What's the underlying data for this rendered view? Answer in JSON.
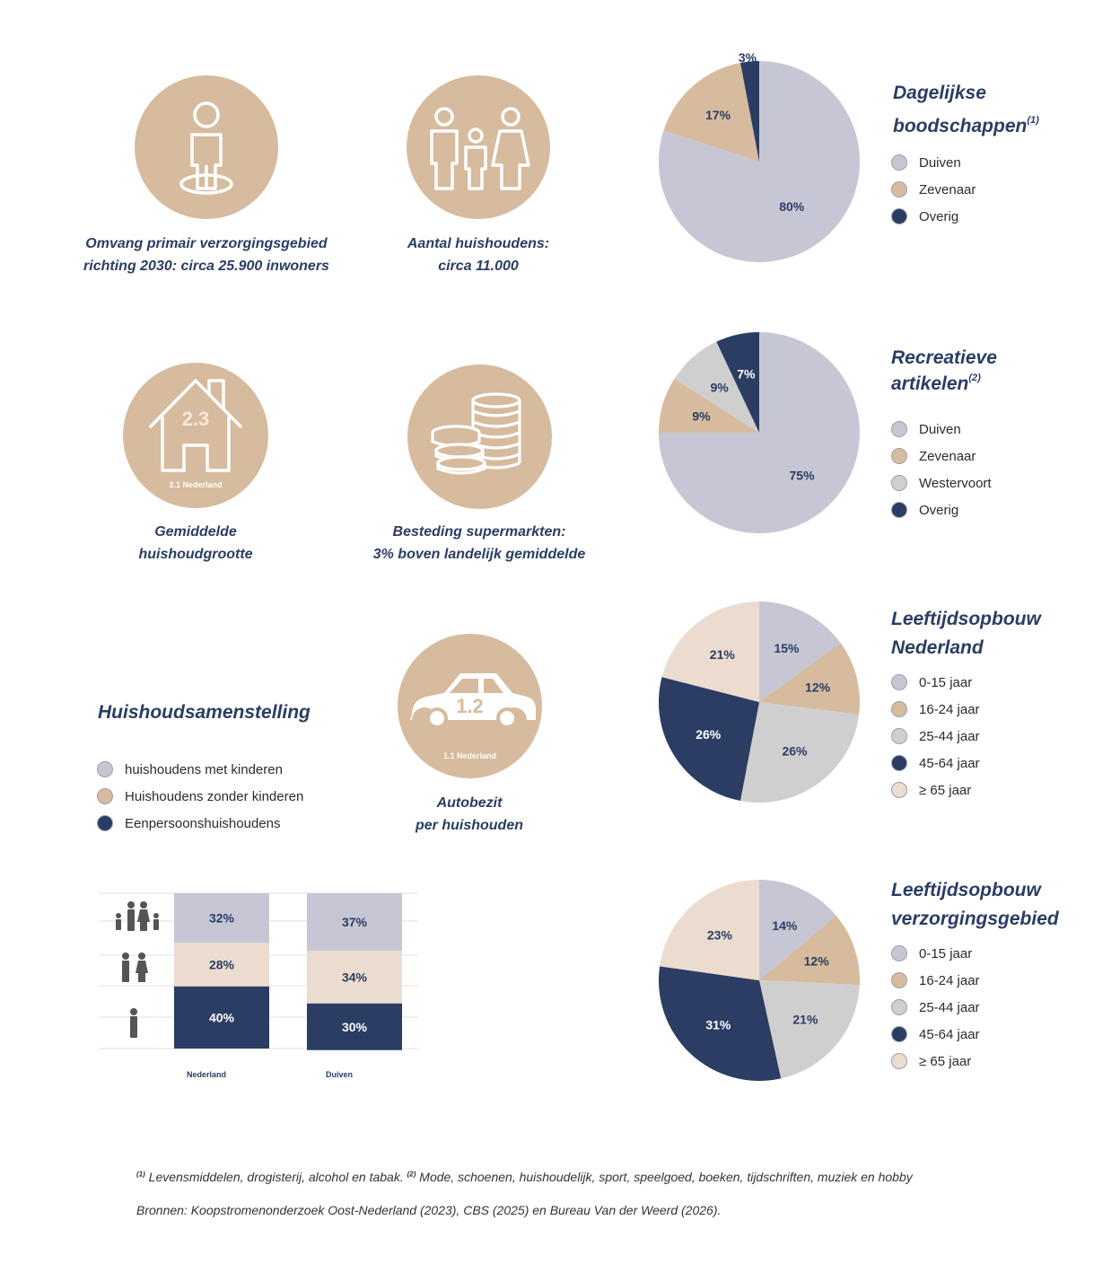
{
  "colors": {
    "navy": "#2b3d63",
    "lavender": "#c6c6d4",
    "tan": "#d6bb9e",
    "lightgray": "#cfcfcf",
    "cream": "#ecdccf",
    "circle_bg": "#d6bb9e"
  },
  "infographics": [
    {
      "icon": "person-standing-icon",
      "caption_line1": "Omvang primair verzorgingsgebied",
      "caption_line2": "richting 2030: circa 25.900 inwoners"
    },
    {
      "icon": "family-icon",
      "caption_line1": "Aantal huishoudens:",
      "caption_line2": "circa 11.000"
    },
    {
      "icon": "house-icon",
      "value": "2.3",
      "sublabel": "2.1 Nederland",
      "caption_line1": "Gemiddelde",
      "caption_line2": "huishoudgrootte"
    },
    {
      "icon": "coins-icon",
      "caption_line1": "Besteding supermarkten:",
      "caption_line2": "3% boven landelijk gemiddelde"
    },
    {
      "icon": "car-icon",
      "value": "1.2",
      "sublabel": "1.1 Nederland",
      "caption_line1": "Autobezit",
      "caption_line2": "per huishouden"
    }
  ],
  "household": {
    "title": "Huishoudsamenstelling",
    "legend": [
      "huishoudens met kinderen",
      "Huishoudens zonder kinderen",
      "Eenpersoonshuishoudens"
    ]
  },
  "pies": [
    {
      "title_line1": "Dagelijkse",
      "title_line2": "boodschappen",
      "sup": "(1)",
      "legend": [
        "Duiven",
        "Zevenaar",
        "Overig"
      ]
    },
    {
      "title_line1": "Recreatieve",
      "title_line2": "artikelen",
      "sup": "(2)",
      "legend": [
        "Duiven",
        "Zevenaar",
        "Westervoort",
        "Overig"
      ]
    },
    {
      "title_line1": "Leeftijdsopbouw",
      "title_line2": "Nederland",
      "sup": "",
      "legend": [
        "0-15 jaar",
        "16-24 jaar",
        "25-44 jaar",
        "45-64 jaar",
        "≥ 65 jaar"
      ]
    },
    {
      "title_line1": "Leeftijdsopbouw",
      "title_line2": "verzorgingsgebied",
      "sup": "",
      "legend": [
        "0-15 jaar",
        "16-24 jaar",
        "25-44 jaar",
        "45-64 jaar",
        "≥ 65 jaar"
      ]
    }
  ],
  "chart_data": [
    {
      "type": "pie",
      "labels": [
        "Duiven",
        "Zevenaar",
        "Overig"
      ],
      "values": [
        80,
        17,
        3
      ],
      "value_labels": [
        "80%",
        "17%",
        "3%"
      ],
      "colors": [
        "#c6c6d4",
        "#d6bb9e",
        "#2b3d63"
      ]
    },
    {
      "type": "pie",
      "labels": [
        "Duiven",
        "Zevenaar",
        "Westervoort",
        "Overig"
      ],
      "values": [
        75,
        9,
        9,
        7
      ],
      "value_labels": [
        "75%",
        "9%",
        "9%",
        "7%"
      ],
      "colors": [
        "#c6c6d4",
        "#d6bb9e",
        "#cfcfcf",
        "#2b3d63"
      ]
    },
    {
      "type": "pie",
      "labels": [
        "0-15 jaar",
        "16-24 jaar",
        "25-44 jaar",
        "45-64 jaar",
        "≥ 65 jaar"
      ],
      "values": [
        15,
        12,
        26,
        26,
        21
      ],
      "value_labels": [
        "15%",
        "12%",
        "26%",
        "26%",
        "21%"
      ],
      "colors": [
        "#c6c6d4",
        "#d6bb9e",
        "#cfcfcf",
        "#2b3d63",
        "#ecdccf"
      ]
    },
    {
      "type": "pie",
      "labels": [
        "0-15 jaar",
        "16-24 jaar",
        "25-44 jaar",
        "45-64 jaar",
        "≥ 65 jaar"
      ],
      "values": [
        14,
        12,
        21,
        31,
        23
      ],
      "value_labels": [
        "14%",
        "12%",
        "21%",
        "31%",
        "23%"
      ],
      "colors": [
        "#c6c6d4",
        "#d6bb9e",
        "#cfcfcf",
        "#2b3d63",
        "#ecdccf"
      ]
    },
    {
      "type": "bar",
      "stacked": true,
      "categories": [
        "Nederland",
        "Duiven"
      ],
      "series": [
        {
          "name": "huishoudens met kinderen",
          "values": [
            32,
            37
          ],
          "labels": [
            "32%",
            "37%"
          ],
          "color": "#c6c6d4"
        },
        {
          "name": "Huishoudens zonder kinderen",
          "values": [
            28,
            34
          ],
          "labels": [
            "28%",
            "34%"
          ],
          "color": "#ecdccf"
        },
        {
          "name": "Eenpersoonshuishoudens",
          "values": [
            40,
            30
          ],
          "labels": [
            "40%",
            "30%"
          ],
          "color": "#2b3d63"
        }
      ],
      "ylim": [
        0,
        100
      ]
    }
  ],
  "footnotes": {
    "sup1": "(1)",
    "text1": "Levensmiddelen, drogisterij, alcohol en tabak.",
    "sup2": "(2)",
    "text2": "Mode, schoenen, huishoudelijk, sport, speelgoed, boeken, tijdschriften, muziek en hobby",
    "sources": "Bronnen: Koopstromenonderzoek Oost-Nederland (2023), CBS (2025) en Bureau Van der Weerd (2026)."
  }
}
